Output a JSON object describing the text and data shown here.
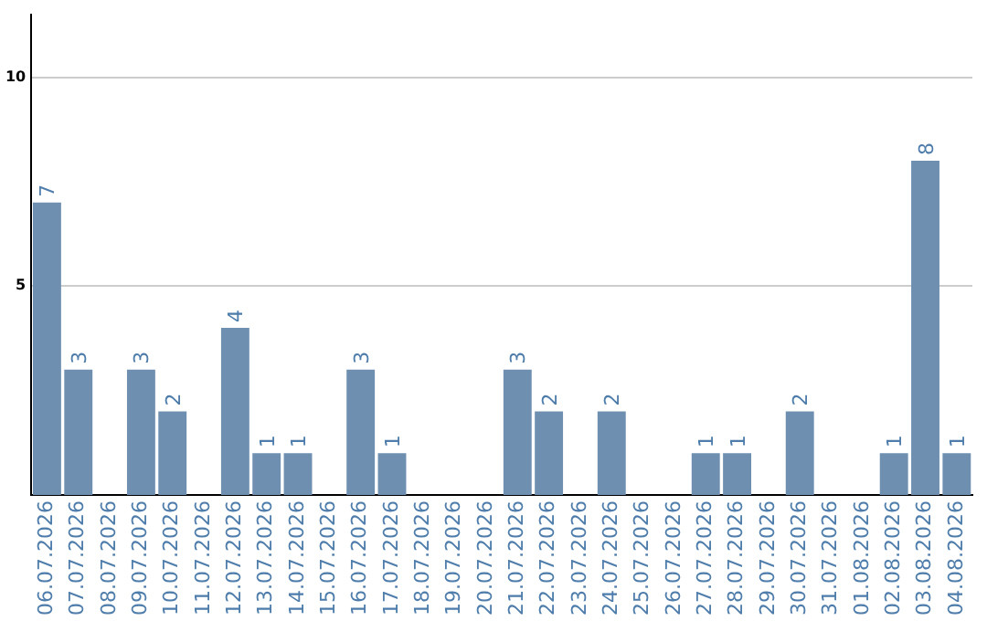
{
  "chart_data": {
    "type": "bar",
    "categories": [
      "06.07.2026",
      "07.07.2026",
      "08.07.2026",
      "09.07.2026",
      "10.07.2026",
      "11.07.2026",
      "12.07.2026",
      "13.07.2026",
      "14.07.2026",
      "15.07.2026",
      "16.07.2026",
      "17.07.2026",
      "18.07.2026",
      "19.07.2026",
      "20.07.2026",
      "21.07.2026",
      "22.07.2026",
      "23.07.2026",
      "24.07.2026",
      "25.07.2026",
      "26.07.2026",
      "27.07.2026",
      "28.07.2026",
      "29.07.2026",
      "30.07.2026",
      "31.07.2026",
      "01.08.2026",
      "02.08.2026",
      "03.08.2026",
      "04.08.2026"
    ],
    "values": [
      7,
      3,
      0,
      3,
      2,
      0,
      4,
      1,
      1,
      0,
      3,
      1,
      0,
      0,
      0,
      3,
      2,
      0,
      2,
      0,
      0,
      1,
      1,
      0,
      2,
      0,
      0,
      1,
      8,
      1
    ],
    "value_labels": [
      "7",
      "3",
      null,
      "3",
      "2",
      null,
      "4",
      "1",
      "1",
      null,
      "3",
      "1",
      null,
      null,
      null,
      "3",
      "2",
      null,
      "2",
      null,
      null,
      "1",
      "1",
      null,
      "2",
      null,
      null,
      "1",
      "8",
      "1"
    ],
    "color": "#6e8fb0",
    "ylim": [
      0,
      11.5
    ],
    "yticks": [
      5,
      10
    ],
    "grid": "y",
    "legend": false
  }
}
